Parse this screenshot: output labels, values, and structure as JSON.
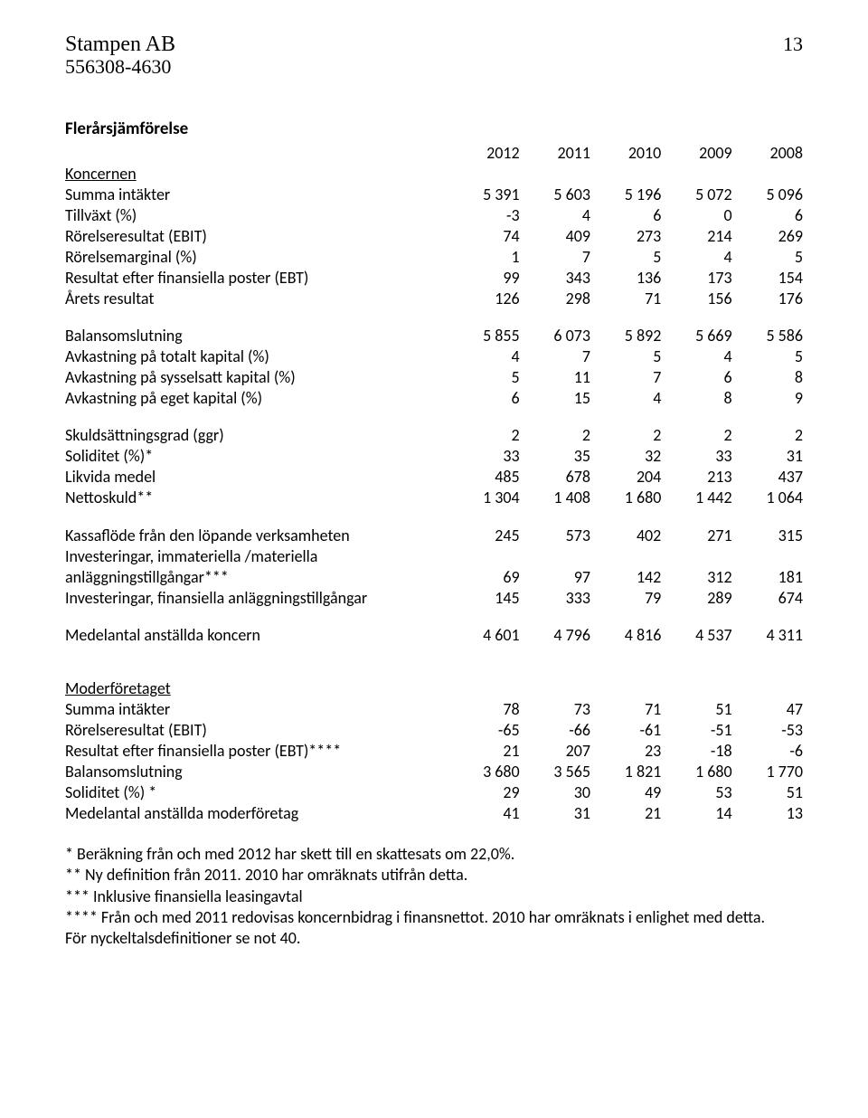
{
  "header": {
    "company_name": "Stampen AB",
    "org_number": "556308-4630",
    "page_number": "13"
  },
  "section_title": "Flerårsjämförelse",
  "years": [
    "2012",
    "2011",
    "2010",
    "2009",
    "2008"
  ],
  "koncernen": {
    "heading": "Koncernen",
    "rows": [
      {
        "label": "Summa intäkter",
        "v": [
          "5 391",
          "5 603",
          "5 196",
          "5 072",
          "5 096"
        ]
      },
      {
        "label": "Tillväxt (%)",
        "v": [
          "-3",
          "4",
          "6",
          "0",
          "6"
        ]
      },
      {
        "label": "Rörelseresultat (EBIT)",
        "v": [
          "74",
          "409",
          "273",
          "214",
          "269"
        ]
      },
      {
        "label": "Rörelsemarginal (%)",
        "v": [
          "1",
          "7",
          "5",
          "4",
          "5"
        ]
      },
      {
        "label": "Resultat efter finansiella poster (EBT)",
        "v": [
          "99",
          "343",
          "136",
          "173",
          "154"
        ]
      },
      {
        "label": "Årets resultat",
        "v": [
          "126",
          "298",
          "71",
          "156",
          "176"
        ]
      }
    ],
    "balance_rows": [
      {
        "label": "Balansomslutning",
        "v": [
          "5 855",
          "6 073",
          "5 892",
          "5 669",
          "5 586"
        ]
      },
      {
        "label": "Avkastning på totalt kapital (%)",
        "v": [
          "4",
          "7",
          "5",
          "4",
          "5"
        ]
      },
      {
        "label": "Avkastning på sysselsatt kapital (%)",
        "v": [
          "5",
          "11",
          "7",
          "6",
          "8"
        ]
      },
      {
        "label": "Avkastning på eget kapital (%)",
        "v": [
          "6",
          "15",
          "4",
          "8",
          "9"
        ]
      }
    ],
    "debt_rows": [
      {
        "label": "Skuldsättningsgrad (ggr)",
        "v": [
          "2",
          "2",
          "2",
          "2",
          "2"
        ]
      },
      {
        "label": "Soliditet (%)*",
        "v": [
          "33",
          "35",
          "32",
          "33",
          "31"
        ]
      },
      {
        "label": "Likvida medel",
        "v": [
          "485",
          "678",
          "204",
          "213",
          "437"
        ]
      },
      {
        "label": "Nettoskuld**",
        "v": [
          "1 304",
          "1 408",
          "1 680",
          "1 442",
          "1 064"
        ]
      }
    ],
    "cash_rows": [
      {
        "label": "Kassaflöde från den löpande verksamheten",
        "v": [
          "245",
          "573",
          "402",
          "271",
          "315"
        ]
      },
      {
        "label": "Investeringar, immateriella /materiella",
        "v": [
          "",
          "",
          "",
          "",
          ""
        ]
      },
      {
        "label": "anläggningstillgångar***",
        "v": [
          "69",
          "97",
          "142",
          "312",
          "181"
        ]
      },
      {
        "label": "Investeringar, finansiella anläggningstillgångar",
        "v": [
          "145",
          "333",
          "79",
          "289",
          "674"
        ]
      }
    ],
    "employees_row": {
      "label": "Medelantal anställda koncern",
      "v": [
        "4 601",
        "4 796",
        "4 816",
        "4 537",
        "4 311"
      ]
    }
  },
  "moderforetaget": {
    "heading": "Moderföretaget",
    "rows": [
      {
        "label": "Summa intäkter",
        "v": [
          "78",
          "73",
          "71",
          "51",
          "47"
        ]
      },
      {
        "label": "Rörelseresultat (EBIT)",
        "v": [
          "-65",
          "-66",
          "-61",
          "-51",
          "-53"
        ]
      },
      {
        "label": "Resultat efter finansiella poster (EBT)****",
        "v": [
          "21",
          "207",
          "23",
          "-18",
          "-6"
        ]
      },
      {
        "label": "Balansomslutning",
        "v": [
          "3 680",
          "3 565",
          "1 821",
          "1 680",
          "1 770"
        ]
      },
      {
        "label": "Soliditet (%) *",
        "v": [
          "29",
          "30",
          "49",
          "53",
          "51"
        ]
      },
      {
        "label": "Medelantal anställda moderföretag",
        "v": [
          "41",
          "31",
          "21",
          "14",
          "13"
        ]
      }
    ]
  },
  "notes": [
    "* Beräkning från och med 2012 har skett till en skattesats om 22,0%.",
    "** Ny definition från 2011. 2010 har omräknats utifrån detta.",
    "*** Inklusive finansiella leasingavtal",
    "**** Från och med 2011 redovisas koncernbidrag i finansnettot. 2010 har omräknats i enlighet med detta.",
    "För nyckeltalsdefinitioner se not 40."
  ]
}
